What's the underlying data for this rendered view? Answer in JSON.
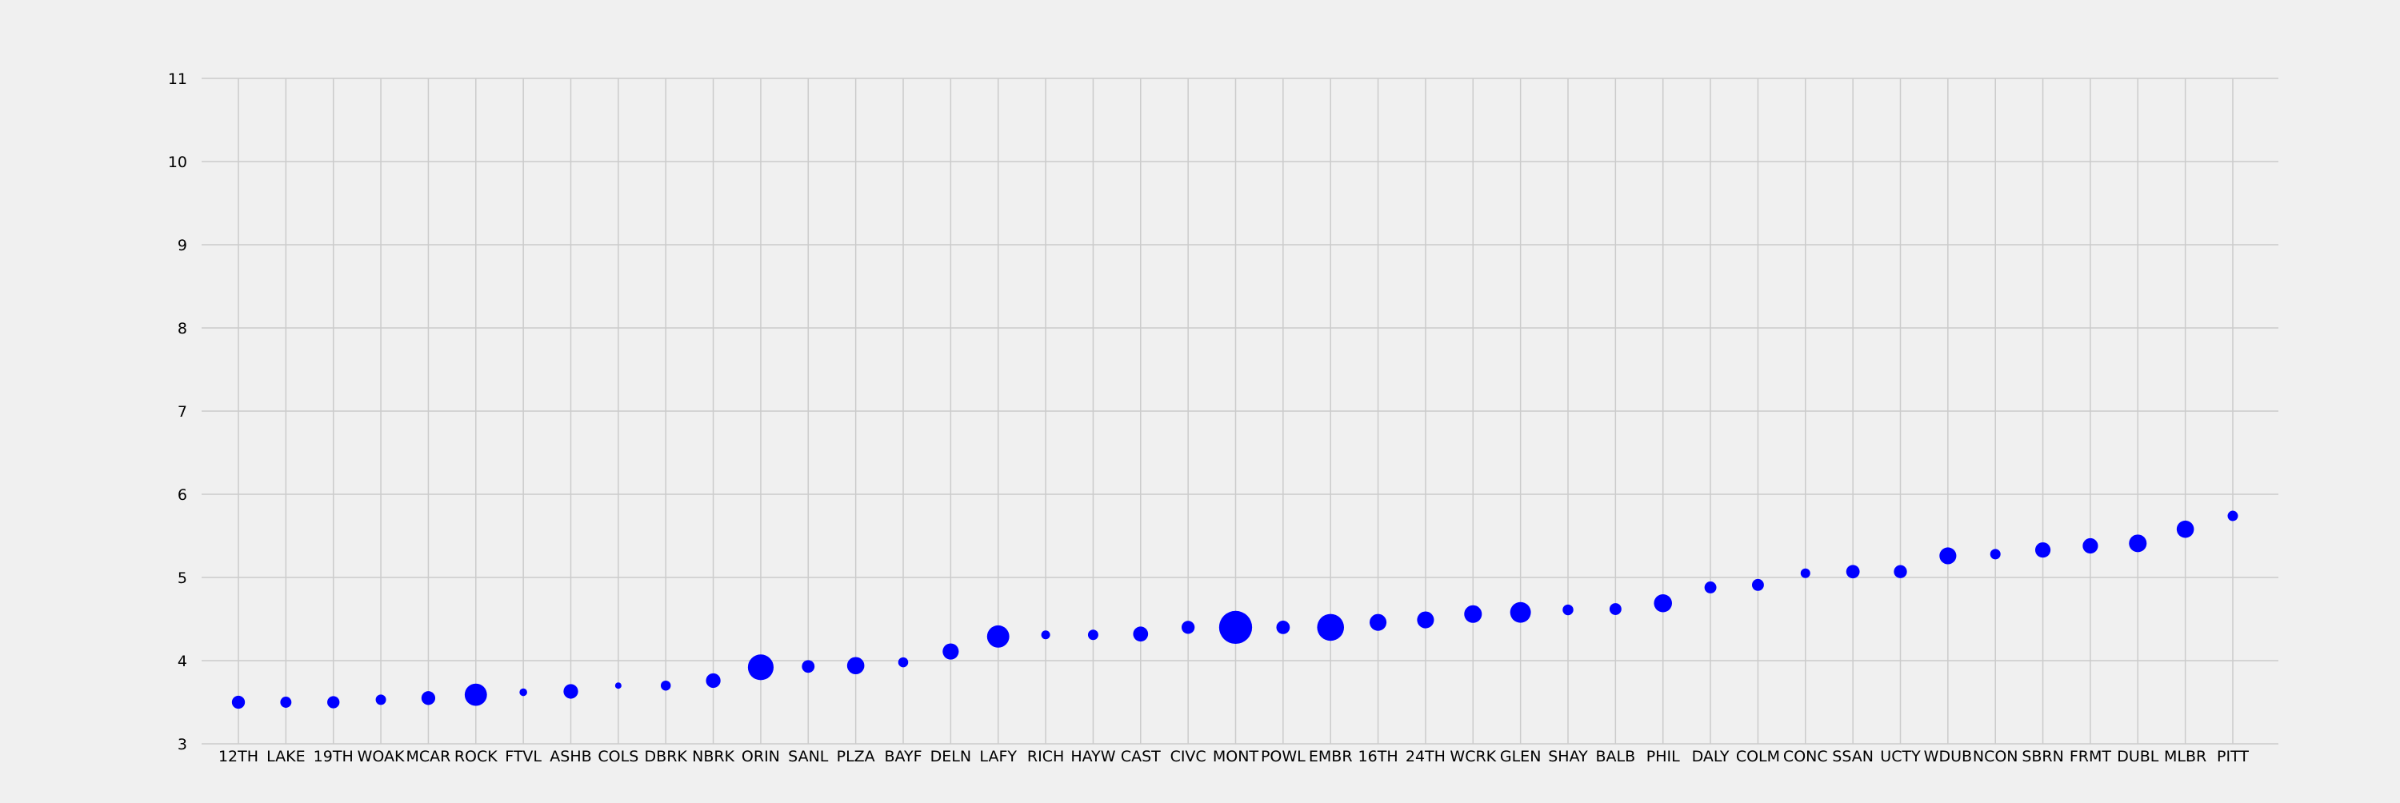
{
  "chart_data": {
    "type": "scatter",
    "title": "",
    "xlabel": "",
    "ylabel": "",
    "ylim": [
      3,
      11
    ],
    "yticks": [
      3,
      4,
      5,
      6,
      7,
      8,
      9,
      10,
      11
    ],
    "grid": true,
    "legend": "none",
    "colors": {
      "background": "#f0f0f0",
      "grid": "#cbcbcb",
      "marker": "#0000ff"
    },
    "categories": [
      "12TH",
      "LAKE",
      "19TH",
      "WOAK",
      "MCAR",
      "ROCK",
      "FTVL",
      "ASHB",
      "COLS",
      "DBRK",
      "NBRK",
      "ORIN",
      "SANL",
      "PLZA",
      "BAYF",
      "DELN",
      "LAFY",
      "RICH",
      "HAYW",
      "CAST",
      "CIVC",
      "MONT",
      "POWL",
      "EMBR",
      "16TH",
      "24TH",
      "WCRK",
      "GLEN",
      "SHAY",
      "BALB",
      "PHIL",
      "DALY",
      "COLM",
      "CONC",
      "SSAN",
      "UCTY",
      "WDUB",
      "NCON",
      "SBRN",
      "FRMT",
      "DUBL",
      "MLBR",
      "PITT"
    ],
    "series": [
      {
        "values": [
          3.5,
          3.5,
          3.5,
          3.53,
          3.55,
          3.59,
          3.62,
          3.63,
          3.7,
          3.7,
          3.76,
          3.92,
          3.93,
          3.94,
          3.98,
          4.11,
          4.29,
          4.31,
          4.31,
          4.32,
          4.4,
          4.4,
          4.4,
          4.4,
          4.46,
          4.49,
          4.56,
          4.58,
          4.61,
          4.62,
          4.69,
          4.88,
          4.91,
          5.05,
          5.07,
          5.07,
          5.26,
          5.28,
          5.33,
          5.38,
          5.41,
          5.58,
          5.74
        ],
        "sizes": [
          0.34,
          0.29,
          0.32,
          0.27,
          0.36,
          0.58,
          0.2,
          0.38,
          0.16,
          0.26,
          0.38,
          0.67,
          0.33,
          0.45,
          0.26,
          0.42,
          0.58,
          0.23,
          0.27,
          0.39,
          0.34,
          0.86,
          0.35,
          0.7,
          0.44,
          0.44,
          0.46,
          0.54,
          0.28,
          0.31,
          0.47,
          0.31,
          0.31,
          0.25,
          0.35,
          0.34,
          0.44,
          0.27,
          0.4,
          0.4,
          0.46,
          0.45,
          0.27
        ]
      }
    ]
  }
}
